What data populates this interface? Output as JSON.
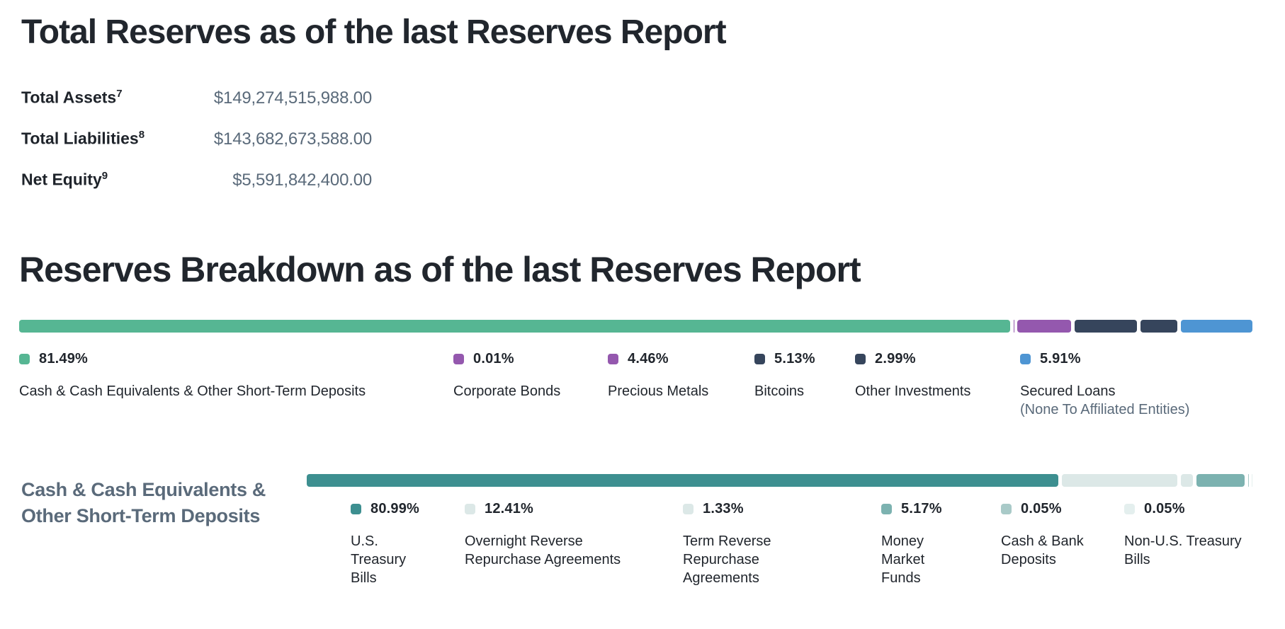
{
  "headings": {
    "total_reserves": "Total Reserves as of the last Reserves Report",
    "reserves_breakdown": "Reserves Breakdown as of the last Reserves Report"
  },
  "totals": {
    "rows": [
      {
        "label": "Total Assets",
        "footnote": "7",
        "value": "$149,274,515,988.00"
      },
      {
        "label": "Total Liabilities",
        "footnote": "8",
        "value": "$143,682,673,588.00"
      },
      {
        "label": "Net Equity",
        "footnote": "9",
        "value": "$5,591,842,400.00"
      }
    ]
  },
  "colors": {
    "text_dark": "#21262d",
    "slate": "#5a6a7a",
    "green": "#56b693",
    "purple": "#9458ae",
    "navy": "#36455c",
    "blue": "#4e95d3",
    "teal_dark": "#3d8f90",
    "mint_pale": "#dce8e7",
    "teal_medium": "#7cb2b0",
    "teal_light": "#a9cac8",
    "mint_lightest": "#e4efee"
  },
  "chart_data": [
    {
      "type": "bar",
      "subtype": "stacked-horizontal-percentage",
      "title": "Reserves Breakdown as of the last Reserves Report",
      "unit": "%",
      "total": 100,
      "legend_position": "below",
      "items": [
        {
          "label": "Cash & Cash Equivalents & Other Short-Term Deposits",
          "pct": "81.49%",
          "value": 81.49,
          "color": "#56b693"
        },
        {
          "label": "Corporate Bonds",
          "pct": "0.01%",
          "value": 0.01,
          "color": "#9458ae"
        },
        {
          "label": "Precious Metals",
          "pct": "4.46%",
          "value": 4.46,
          "color": "#9458ae"
        },
        {
          "label": "Bitcoins",
          "pct": "5.13%",
          "value": 5.13,
          "color": "#36455c"
        },
        {
          "label": "Other Investments",
          "pct": "2.99%",
          "value": 2.99,
          "color": "#36455c"
        },
        {
          "label": "Secured Loans",
          "sublabel": "(None To Affiliated Entities)",
          "pct": "5.91%",
          "value": 5.91,
          "color": "#4e95d3"
        }
      ]
    },
    {
      "type": "bar",
      "subtype": "stacked-horizontal-percentage",
      "title": "Cash & Cash Equivalents & Other Short-Term Deposits",
      "title_lines": [
        "Cash & Cash Equivalents &",
        "Other Short-Term Deposits"
      ],
      "unit": "%",
      "total": 100,
      "legend_position": "below",
      "items": [
        {
          "label": "U.S. Treasury Bills",
          "pct": "80.99%",
          "value": 80.99,
          "color": "#3d8f90"
        },
        {
          "label": "Overnight Reverse Repurchase Agreements",
          "pct": "12.41%",
          "value": 12.41,
          "color": "#dce8e7"
        },
        {
          "label": "Term Reverse Repurchase Agreements",
          "pct": "1.33%",
          "value": 1.33,
          "color": "#dce8e7"
        },
        {
          "label": "Money Market Funds",
          "pct": "5.17%",
          "value": 5.17,
          "color": "#7cb2b0"
        },
        {
          "label": "Cash & Bank Deposits",
          "pct": "0.05%",
          "value": 0.05,
          "color": "#a9cac8"
        },
        {
          "label": "Non-U.S. Treasury Bills",
          "pct": "0.05%",
          "value": 0.05,
          "color": "#e4efee"
        }
      ]
    }
  ]
}
